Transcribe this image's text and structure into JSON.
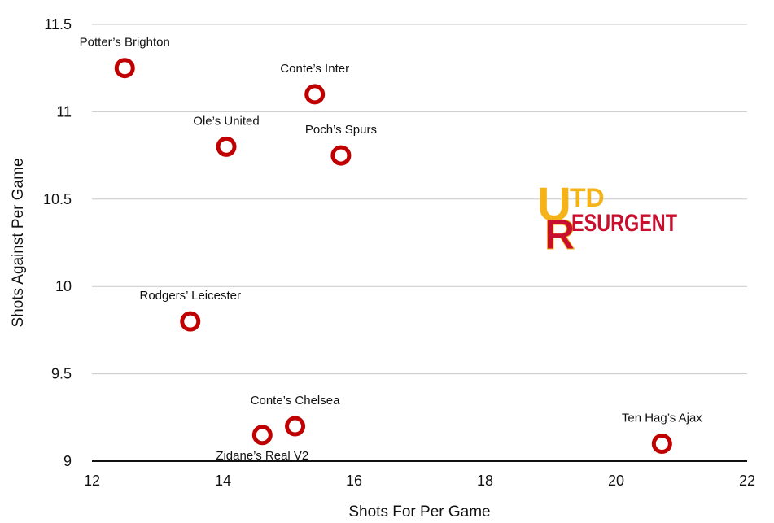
{
  "chart_data": {
    "type": "scatter",
    "title": "",
    "xlabel": "Shots For Per Game",
    "ylabel": "Shots Against Per Game",
    "xlim": [
      12,
      22
    ],
    "ylim": [
      9,
      11.5
    ],
    "x_ticks": [
      "12",
      "14",
      "16",
      "18",
      "20",
      "22"
    ],
    "y_ticks": [
      "9",
      "9.5",
      "10",
      "10.5",
      "11",
      "11.5"
    ],
    "grid": "horizontal",
    "marker_color": "#c00000",
    "points": [
      {
        "label": "Potter’s Brighton",
        "x": 12.5,
        "y": 11.25
      },
      {
        "label": "Conte’s Inter",
        "x": 15.4,
        "y": 11.1
      },
      {
        "label": "Ole’s United",
        "x": 14.05,
        "y": 10.8
      },
      {
        "label": "Poch’s Spurs",
        "x": 15.8,
        "y": 10.75
      },
      {
        "label": "Rodgers’ Leicester",
        "x": 13.5,
        "y": 9.8
      },
      {
        "label": "Conte’s Chelsea",
        "x": 15.1,
        "y": 9.2
      },
      {
        "label": "Zidane’s Real V2",
        "x": 14.6,
        "y": 9.15
      },
      {
        "label": "Ten Hag’s Ajax",
        "x": 20.7,
        "y": 9.1
      }
    ]
  },
  "logo": {
    "letter_u": "U",
    "letter_r": "R",
    "top_text": "TD",
    "bottom_text": "ESURGENT",
    "color_primary": "#c8102e",
    "color_accent": "#f5b31a"
  }
}
